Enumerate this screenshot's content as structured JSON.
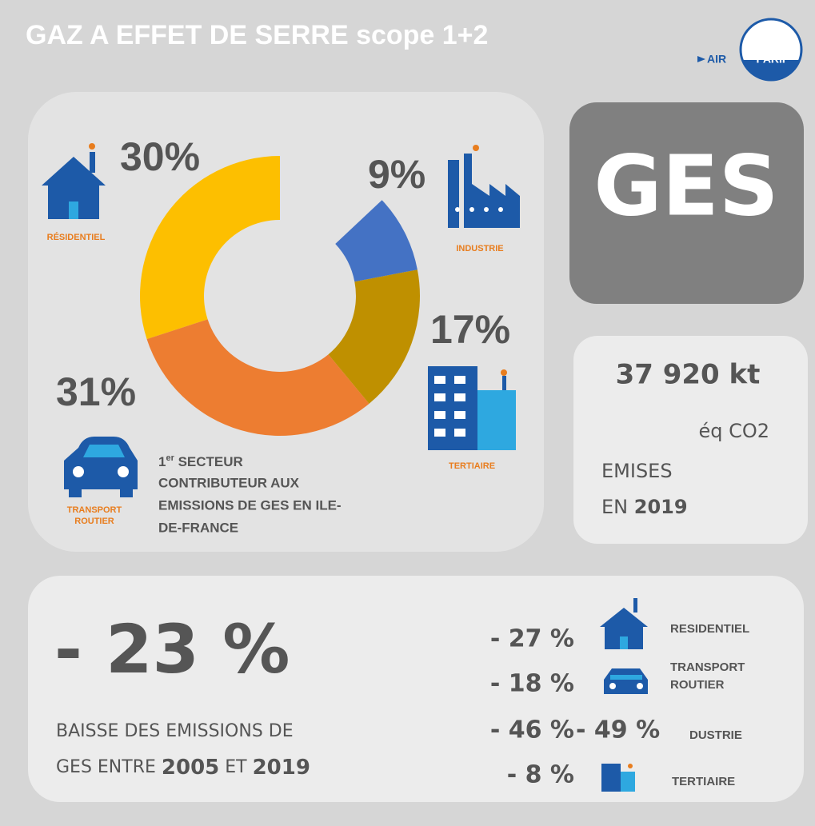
{
  "header": {
    "title": "GAZ A EFFET DE SERRE scope 1+2",
    "logo": [
      "AIR",
      "PARIF"
    ]
  },
  "chart_data": {
    "type": "donut",
    "categories": [
      "RÉSIDENTIEL",
      "TRANSPORT ROUTIER",
      "TERTIAIRE",
      "INDUSTRIE"
    ],
    "values": [
      30,
      31,
      17,
      9
    ],
    "value_labels": [
      "30%",
      "31%",
      "17%",
      "9%"
    ],
    "colors": [
      "#fdbf00",
      "#ed7d31",
      "#bf9000",
      "#4472c4"
    ],
    "annotation": {
      "first": "1",
      "sup": "er",
      "lines": [
        " SECTEUR",
        "CONTRIBUTEUR AUX",
        "EMISSIONS DE GES EN ILE-",
        "DE-FRANCE"
      ]
    }
  },
  "badge": "GES",
  "stat": {
    "amount": "37 920 kt",
    "unit": "éq CO2",
    "line1": "EMISES",
    "line2": [
      "EN ",
      "2019"
    ]
  },
  "trend": {
    "headline": "- 23 %",
    "line1": "BAISSE DES EMISSIONS DE",
    "line2": [
      "GES ENTRE ",
      "2005",
      " ET ",
      "2019"
    ],
    "items": [
      {
        "change": "- 27 %",
        "label": "RESIDENTIEL"
      },
      {
        "change": "- 18 %",
        "label": "TRANSPORT ROUTIER"
      },
      {
        "change": "- 46 %",
        "change2": "- 49 %",
        "label": "DUSTRIE"
      },
      {
        "change": "- 8 %",
        "label": "TERTIAIRE"
      }
    ]
  }
}
